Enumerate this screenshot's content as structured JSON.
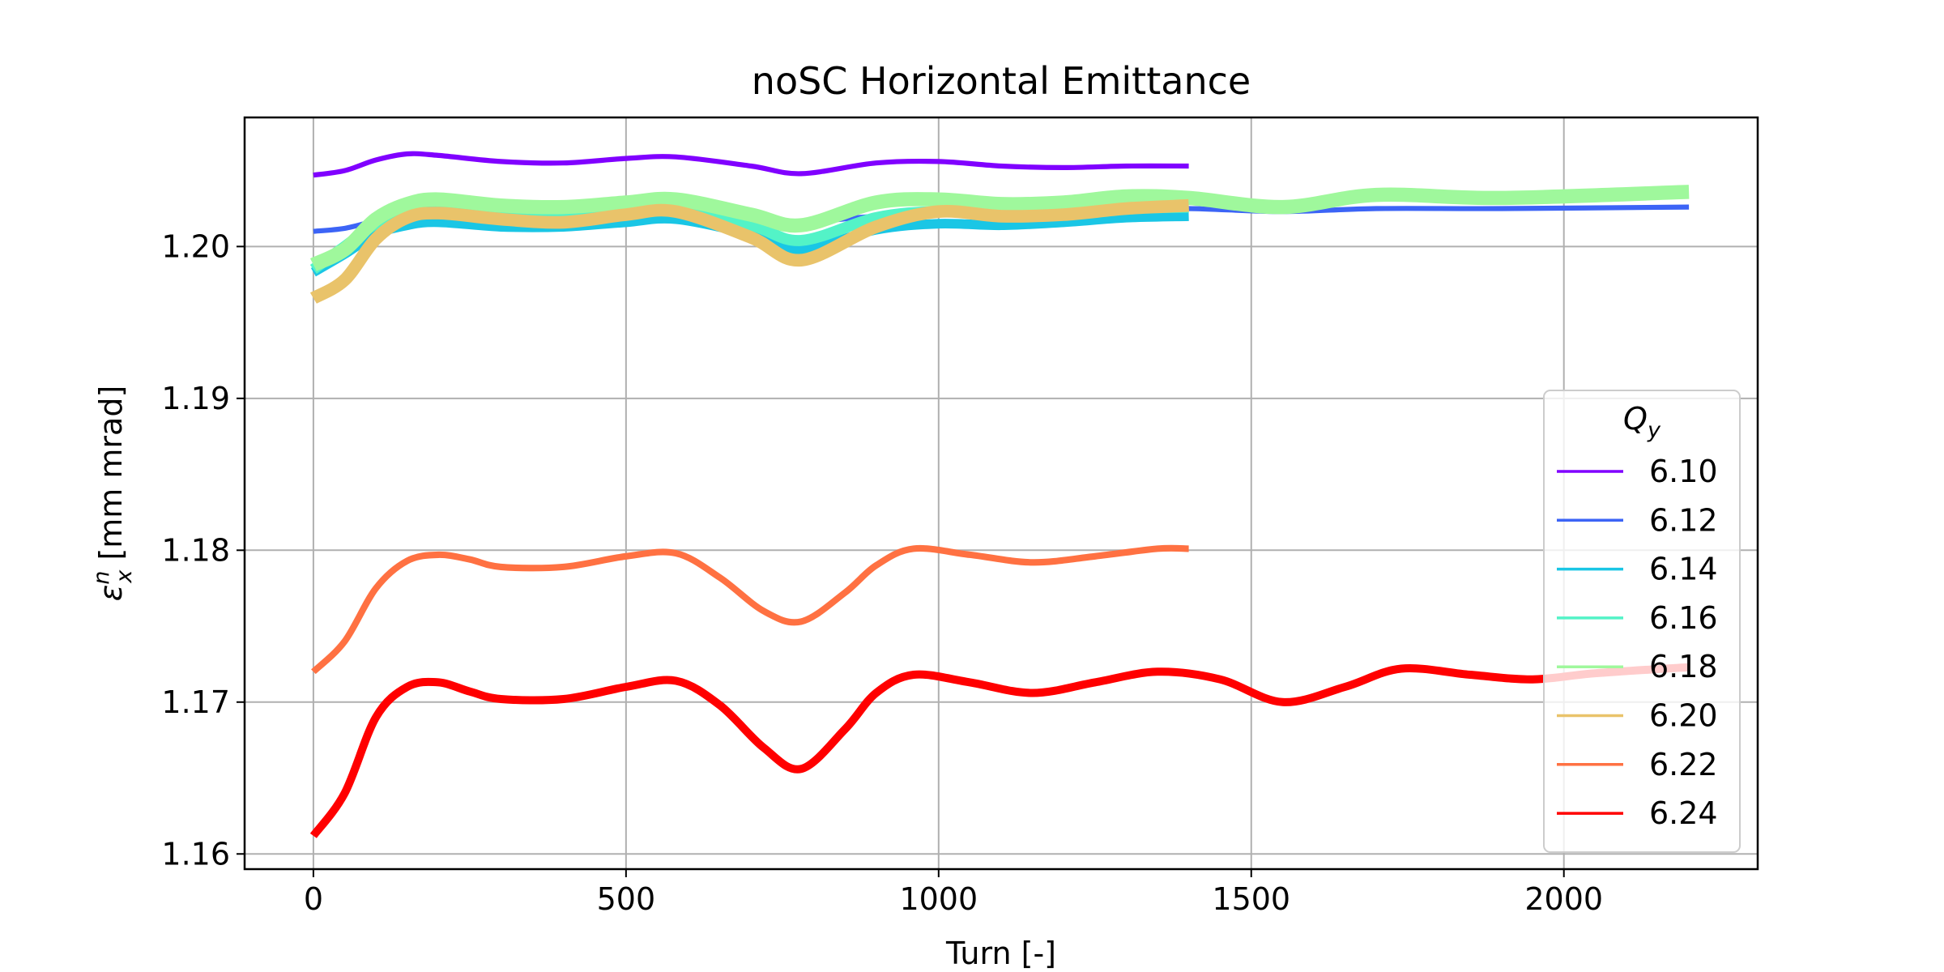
{
  "chart_data": {
    "type": "line",
    "title": "noSC Horizontal Emittance",
    "xlabel": "Turn [-]",
    "ylabel_symbol": "ε",
    "ylabel_sub": "x",
    "ylabel_sup": "n",
    "ylabel_unit": " [mm mrad]",
    "xlim": [
      -110,
      2310
    ],
    "ylim": [
      1.159,
      1.2085
    ],
    "xticks": [
      0,
      500,
      1000,
      1500,
      2000
    ],
    "xtick_labels": [
      "0",
      "500",
      "1000",
      "1500",
      "2000"
    ],
    "yticks": [
      1.16,
      1.17,
      1.18,
      1.19,
      1.2
    ],
    "ytick_labels": [
      "1.16",
      "1.17",
      "1.18",
      "1.19",
      "1.20"
    ],
    "grid": true,
    "legend": {
      "title_symbol": "Q",
      "title_sub": "y",
      "location": "lower-right"
    },
    "series": [
      {
        "name": "6.10",
        "color": "#8000ff",
        "band": 0.0002,
        "x": [
          0,
          50,
          100,
          150,
          200,
          300,
          400,
          500,
          580,
          700,
          780,
          900,
          1000,
          1100,
          1200,
          1300,
          1400
        ],
        "y": [
          1.2047,
          1.205,
          1.2057,
          1.2061,
          1.206,
          1.2056,
          1.2055,
          1.2058,
          1.2059,
          1.2053,
          1.2048,
          1.2055,
          1.2056,
          1.2053,
          1.2052,
          1.2053,
          1.2053
        ]
      },
      {
        "name": "6.12",
        "color": "#3c64f6",
        "band": 0.0002,
        "x": [
          0,
          50,
          100,
          150,
          200,
          300,
          400,
          500,
          580,
          700,
          780,
          900,
          1000,
          1100,
          1200,
          1300,
          1400,
          1550,
          1700,
          1900,
          2200
        ],
        "y": [
          1.201,
          1.2012,
          1.2017,
          1.2021,
          1.2022,
          1.2022,
          1.2021,
          1.2022,
          1.2022,
          1.2018,
          1.2016,
          1.202,
          1.2022,
          1.2021,
          1.2022,
          1.2024,
          1.2025,
          1.2023,
          1.2025,
          1.2025,
          1.2026
        ]
      },
      {
        "name": "6.14",
        "color": "#1ac6e5",
        "band": 0.0005,
        "x": [
          0,
          50,
          100,
          150,
          200,
          300,
          400,
          500,
          580,
          700,
          780,
          900,
          1000,
          1100,
          1200,
          1300,
          1400
        ],
        "y": [
          1.1983,
          1.1995,
          1.2008,
          1.2014,
          1.2016,
          1.2013,
          1.2013,
          1.2016,
          1.2018,
          1.2008,
          1.1998,
          1.2011,
          1.2015,
          1.2014,
          1.2016,
          1.2019,
          1.202
        ]
      },
      {
        "name": "6.16",
        "color": "#53f3c7",
        "band": 0.0006,
        "x": [
          0,
          50,
          100,
          150,
          200,
          300,
          400,
          500,
          580,
          700,
          780,
          900,
          1000,
          1100,
          1200,
          1300,
          1400
        ],
        "y": [
          1.1985,
          1.2,
          1.2015,
          1.2022,
          1.2024,
          1.2019,
          1.2018,
          1.2022,
          1.2024,
          1.2014,
          1.2004,
          1.2019,
          1.2023,
          1.2021,
          1.2022,
          1.2025,
          1.2026
        ]
      },
      {
        "name": "6.18",
        "color": "#9ff89c",
        "band": 0.0008,
        "x": [
          0,
          50,
          100,
          150,
          200,
          300,
          400,
          500,
          580,
          700,
          780,
          900,
          1000,
          1100,
          1200,
          1300,
          1400,
          1550,
          1700,
          1900,
          2200
        ],
        "y": [
          1.1988,
          1.1998,
          1.2018,
          1.2028,
          1.2031,
          1.2027,
          1.2026,
          1.2029,
          1.2031,
          1.2021,
          1.2014,
          1.2029,
          1.2031,
          1.2028,
          1.2029,
          1.2033,
          1.2032,
          1.2026,
          1.2034,
          1.2032,
          1.2036
        ]
      },
      {
        "name": "6.20",
        "color": "#e9c36a",
        "band": 0.0007,
        "x": [
          0,
          50,
          100,
          150,
          200,
          300,
          400,
          500,
          580,
          700,
          780,
          900,
          1000,
          1100,
          1200,
          1300,
          1400
        ],
        "y": [
          1.1966,
          1.1978,
          1.2005,
          1.2019,
          1.2022,
          1.2018,
          1.2016,
          1.2021,
          1.2023,
          1.2006,
          1.1991,
          1.2013,
          1.2023,
          1.202,
          1.2021,
          1.2025,
          1.2027
        ]
      },
      {
        "name": "6.22",
        "color": "#ff7142",
        "band": 0.0003,
        "x": [
          0,
          50,
          100,
          150,
          200,
          250,
          300,
          400,
          500,
          580,
          650,
          720,
          780,
          850,
          900,
          960,
          1050,
          1150,
          1250,
          1350,
          1400
        ],
        "y": [
          1.172,
          1.174,
          1.1775,
          1.1793,
          1.1797,
          1.1794,
          1.1789,
          1.1789,
          1.1796,
          1.1798,
          1.1782,
          1.176,
          1.1753,
          1.1772,
          1.179,
          1.1801,
          1.1797,
          1.1792,
          1.1796,
          1.1801,
          1.1801
        ]
      },
      {
        "name": "6.24",
        "color": "#ff0000",
        "band": 0.0004,
        "x": [
          0,
          50,
          100,
          150,
          200,
          250,
          300,
          400,
          500,
          580,
          650,
          720,
          780,
          850,
          900,
          960,
          1050,
          1150,
          1250,
          1350,
          1450,
          1550,
          1650,
          1740,
          1850,
          1950,
          2050,
          2200
        ],
        "y": [
          1.1612,
          1.164,
          1.169,
          1.171,
          1.1713,
          1.1707,
          1.1702,
          1.1702,
          1.171,
          1.1714,
          1.1698,
          1.167,
          1.1656,
          1.1682,
          1.1706,
          1.1718,
          1.1713,
          1.1706,
          1.1713,
          1.172,
          1.1715,
          1.17,
          1.171,
          1.1722,
          1.1718,
          1.1715,
          1.1719,
          1.1723
        ]
      }
    ]
  }
}
